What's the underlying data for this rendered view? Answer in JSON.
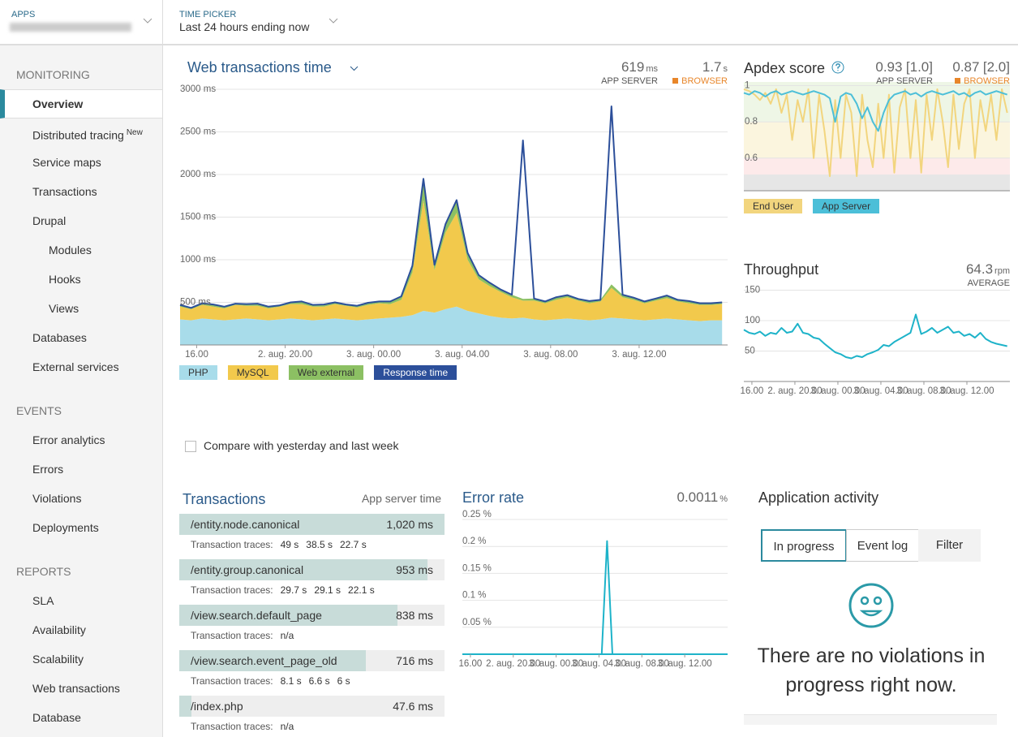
{
  "header": {
    "apps_label": "APPS",
    "time_picker_label": "TIME PICKER",
    "time_range": "Last 24 hours ending now"
  },
  "sidebar": {
    "sections": [
      {
        "title": "MONITORING",
        "items": [
          {
            "label": "Overview",
            "selected": true
          },
          {
            "label": "Distributed tracing",
            "badge": "New"
          },
          {
            "label": "Service maps"
          },
          {
            "label": "Transactions"
          },
          {
            "label": "Drupal",
            "children": [
              "Modules",
              "Hooks",
              "Views"
            ]
          },
          {
            "label": "Databases"
          },
          {
            "label": "External services"
          }
        ]
      },
      {
        "title": "EVENTS",
        "items": [
          {
            "label": "Error analytics"
          },
          {
            "label": "Errors"
          },
          {
            "label": "Violations"
          },
          {
            "label": "Deployments"
          }
        ]
      },
      {
        "title": "REPORTS",
        "items": [
          {
            "label": "SLA"
          },
          {
            "label": "Availability"
          },
          {
            "label": "Scalability"
          },
          {
            "label": "Web transactions"
          },
          {
            "label": "Database"
          }
        ]
      }
    ]
  },
  "time_axis": {
    "xlim": [
      15.25,
      40
    ],
    "x": [
      15.25,
      15.75,
      16.25,
      16.75,
      17.25,
      17.75,
      18.25,
      18.75,
      19.25,
      19.75,
      20.25,
      20.75,
      21.25,
      21.75,
      22.25,
      22.75,
      23.25,
      23.75,
      24.25,
      24.75,
      25.25,
      25.75,
      26.25,
      26.75,
      27.25,
      27.75,
      28.25,
      28.75,
      29.25,
      29.75,
      30.25,
      30.75,
      31.25,
      31.75,
      32.25,
      32.75,
      33.25,
      33.75,
      34.25,
      34.75,
      35.25,
      35.75,
      36.25,
      36.75,
      37.25,
      37.75,
      38.25,
      38.75,
      39.25,
      39.75
    ],
    "xticks": [
      {
        "value": 16,
        "label": "16.00"
      },
      {
        "value": 20,
        "label": "2. aug. 20.00"
      },
      {
        "value": 24,
        "label": "3. aug. 00.00"
      },
      {
        "value": 28,
        "label": "3. aug. 04.00"
      },
      {
        "value": 32,
        "label": "3. aug. 08.00"
      },
      {
        "value": 36,
        "label": "3. aug. 12.00"
      }
    ]
  },
  "web_transactions": {
    "type": "area",
    "title": "Web transactions time",
    "app_server": {
      "value": 619,
      "unit": "ms",
      "label": "APP SERVER"
    },
    "browser": {
      "value": 1.7,
      "unit": "s",
      "label": "BROWSER"
    },
    "ylim": [
      0,
      3000
    ],
    "yticks": [
      {
        "value": 500,
        "label": "500 ms"
      },
      {
        "value": 1000,
        "label": "1000 ms"
      },
      {
        "value": 1500,
        "label": "1500 ms"
      },
      {
        "value": 2000,
        "label": "2000 ms"
      },
      {
        "value": 2500,
        "label": "2500 ms"
      },
      {
        "value": 3000,
        "label": "3000 ms"
      }
    ],
    "series": [
      {
        "name": "PHP",
        "color": "#a8dcea",
        "values": [
          300,
          290,
          310,
          300,
          290,
          300,
          310,
          300,
          290,
          300,
          310,
          300,
          290,
          300,
          310,
          300,
          290,
          300,
          310,
          320,
          330,
          350,
          400,
          380,
          420,
          450,
          400,
          370,
          340,
          320,
          310,
          320,
          300,
          290,
          300,
          310,
          300,
          290,
          300,
          320,
          310,
          300,
          290,
          300,
          310,
          300,
          290,
          280,
          290,
          290
        ]
      },
      {
        "name": "MySQL",
        "color": "#f2c94c",
        "values": [
          150,
          130,
          160,
          150,
          140,
          170,
          150,
          160,
          140,
          150,
          170,
          180,
          160,
          150,
          170,
          160,
          150,
          170,
          180,
          160,
          200,
          500,
          1300,
          500,
          900,
          1100,
          600,
          400,
          350,
          300,
          250,
          200,
          220,
          200,
          230,
          250,
          220,
          200,
          210,
          350,
          250,
          230,
          200,
          220,
          240,
          210,
          200,
          190,
          180,
          190
        ]
      },
      {
        "name": "Web external",
        "color": "#8cc063",
        "values": [
          20,
          15,
          20,
          25,
          20,
          15,
          20,
          25,
          20,
          15,
          20,
          30,
          20,
          25,
          20,
          15,
          20,
          25,
          20,
          30,
          40,
          80,
          200,
          60,
          100,
          150,
          80,
          50,
          40,
          30,
          30,
          20,
          25,
          20,
          30,
          25,
          20,
          25,
          20,
          40,
          30,
          25,
          20,
          25,
          30,
          20,
          25,
          20,
          20,
          20
        ]
      },
      {
        "name": "Response time",
        "color": "#2c4f9a",
        "line": true,
        "values": [
          470,
          435,
          490,
          475,
          450,
          485,
          480,
          485,
          450,
          465,
          500,
          510,
          470,
          475,
          500,
          475,
          460,
          495,
          510,
          510,
          570,
          930,
          1950,
          940,
          1420,
          1700,
          1080,
          820,
          730,
          650,
          590,
          2400,
          545,
          510,
          560,
          585,
          540,
          515,
          530,
          2800,
          590,
          555,
          510,
          545,
          580,
          530,
          515,
          490,
          490,
          500
        ]
      }
    ]
  },
  "apdex": {
    "type": "line",
    "title": "Apdex score",
    "app_server": {
      "value": 0.93,
      "threshold": "[1.0]",
      "label": "APP SERVER"
    },
    "browser": {
      "value": 0.87,
      "threshold": "[2.0]",
      "label": "BROWSER"
    },
    "ylim": [
      0.42,
      1.02
    ],
    "yticks": [
      0.6,
      0.8,
      1
    ],
    "series": [
      {
        "name": "End User",
        "color": "#f2d57e",
        "values": [
          0.98,
          0.97,
          0.95,
          0.92,
          0.96,
          0.9,
          0.98,
          0.85,
          0.95,
          0.7,
          0.92,
          0.8,
          0.98,
          0.6,
          0.95,
          0.75,
          0.5,
          0.92,
          0.6,
          0.95,
          0.85,
          0.5,
          0.95,
          0.7,
          0.55,
          0.9,
          0.6,
          0.95,
          0.52,
          0.88,
          0.98,
          0.6,
          0.92,
          0.52,
          0.95,
          0.7,
          0.98,
          0.8,
          0.55,
          0.95,
          0.65,
          0.9,
          0.98,
          0.6,
          0.92,
          0.75,
          0.95,
          0.7,
          0.98,
          0.85
        ]
      },
      {
        "name": "App Server",
        "color": "#4cbfd8",
        "values": [
          0.96,
          0.95,
          0.97,
          0.96,
          0.94,
          0.96,
          0.97,
          0.95,
          0.96,
          0.97,
          0.96,
          0.95,
          0.96,
          0.97,
          0.96,
          0.95,
          0.93,
          0.8,
          0.94,
          0.96,
          0.95,
          0.9,
          0.82,
          0.88,
          0.8,
          0.75,
          0.85,
          0.92,
          0.95,
          0.96,
          0.97,
          0.95,
          0.96,
          0.94,
          0.96,
          0.97,
          0.96,
          0.95,
          0.96,
          0.97,
          0.95,
          0.96,
          0.94,
          0.96,
          0.97,
          0.95,
          0.96,
          0.97,
          0.96,
          0.95
        ]
      }
    ]
  },
  "throughput": {
    "type": "line",
    "title": "Throughput",
    "average": {
      "value": 64.3,
      "unit": "rpm",
      "label": "AVERAGE"
    },
    "ylim": [
      0,
      160
    ],
    "yticks": [
      50,
      100,
      150
    ],
    "series": [
      {
        "color": "#1eb3c9",
        "values": [
          85,
          80,
          78,
          82,
          75,
          80,
          78,
          88,
          80,
          82,
          95,
          80,
          78,
          72,
          70,
          62,
          55,
          48,
          45,
          40,
          38,
          42,
          40,
          45,
          48,
          52,
          60,
          58,
          65,
          70,
          75,
          80,
          110,
          78,
          82,
          88,
          80,
          85,
          90,
          80,
          82,
          75,
          78,
          72,
          80,
          70,
          65,
          62,
          60,
          58
        ]
      }
    ]
  },
  "error_rate": {
    "type": "line",
    "title": "Error rate",
    "current": {
      "value": 0.0011,
      "unit": "%"
    },
    "ylim": [
      0,
      0.25
    ],
    "yticks": [
      {
        "value": 0.05,
        "label": "0.05 %"
      },
      {
        "value": 0.1,
        "label": "0.1 %"
      },
      {
        "value": 0.15,
        "label": "0.15 %"
      },
      {
        "value": 0.2,
        "label": "0.2 %"
      },
      {
        "value": 0.25,
        "label": "0.25 %"
      }
    ],
    "series": [
      {
        "color": "#1eb3c9",
        "values": [
          0,
          0,
          0,
          0,
          0,
          0,
          0,
          0,
          0,
          0,
          0,
          0,
          0,
          0,
          0,
          0,
          0,
          0,
          0,
          0,
          0,
          0,
          0,
          0,
          0,
          0,
          0,
          0.21,
          0,
          0,
          0,
          0,
          0,
          0,
          0,
          0,
          0,
          0,
          0,
          0,
          0,
          0,
          0,
          0,
          0,
          0,
          0,
          0,
          0,
          0
        ]
      }
    ]
  },
  "compare_label": "Compare with yesterday and last week",
  "transactions": {
    "title": "Transactions",
    "column": "App server time",
    "traces_label": "Transaction traces:",
    "rows": [
      {
        "name": "/entity.node.canonical",
        "time": {
          "value": 1020,
          "label": "1,020 ms"
        },
        "traces": [
          "49 s",
          "38.5 s",
          "22.7 s"
        ]
      },
      {
        "name": "/entity.group.canonical",
        "time": {
          "value": 953,
          "label": "953 ms"
        },
        "traces": [
          "29.7 s",
          "29.1 s",
          "22.1 s"
        ]
      },
      {
        "name": "/view.search.default_page",
        "time": {
          "value": 838,
          "label": "838 ms"
        },
        "traces": [
          "n/a"
        ]
      },
      {
        "name": "/view.search.event_page_old",
        "time": {
          "value": 716,
          "label": "716 ms"
        },
        "traces": [
          "8.1 s",
          "6.6 s",
          "6 s"
        ]
      },
      {
        "name": "/index.php",
        "time": {
          "value": 47.6,
          "label": "47.6 ms"
        },
        "traces": [
          "n/a"
        ]
      }
    ]
  },
  "activity": {
    "title": "Application activity",
    "tabs": [
      "In progress",
      "Event log",
      "Filter"
    ],
    "message": "There are no violations in progress right now."
  }
}
